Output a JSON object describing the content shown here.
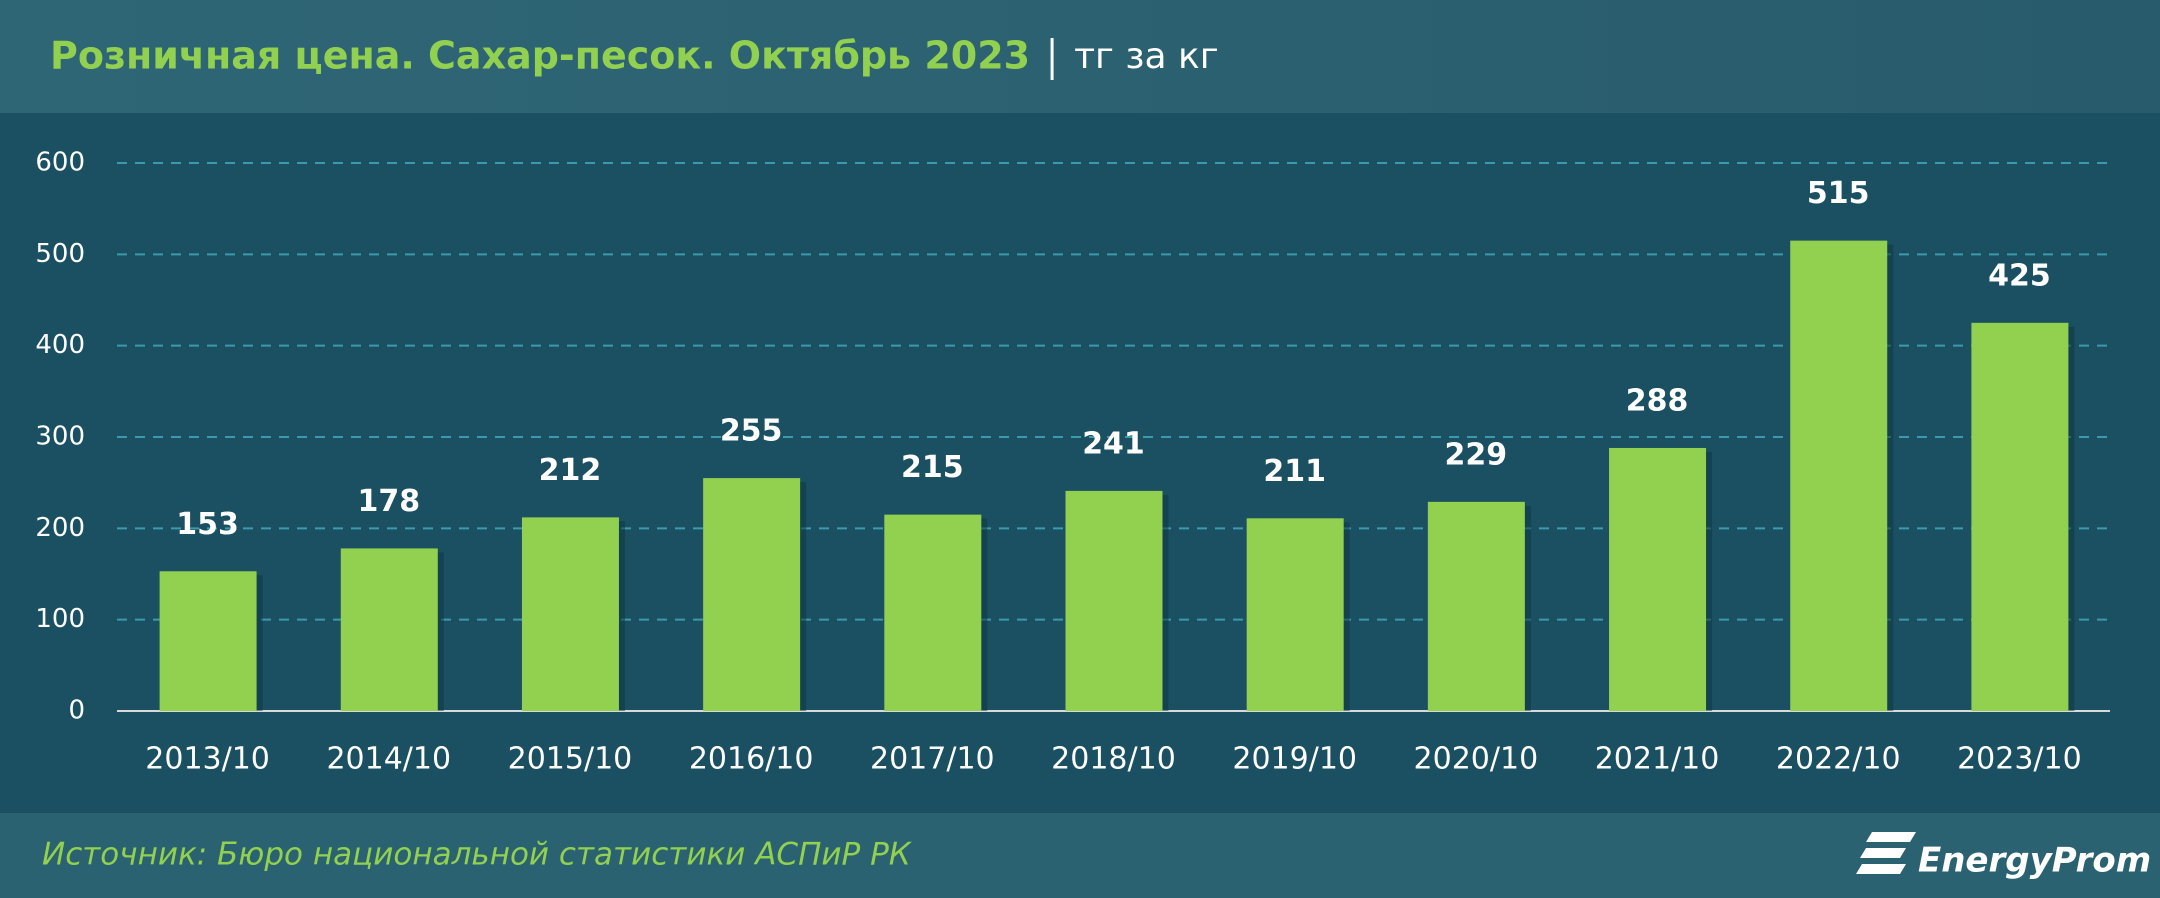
{
  "chart_data": {
    "type": "bar",
    "title": "Розничная цена. Сахар-песок. Октябрь 2023",
    "unit": "тг за кг",
    "categories": [
      "2013/10",
      "2014/10",
      "2015/10",
      "2016/10",
      "2017/10",
      "2018/10",
      "2019/10",
      "2020/10",
      "2021/10",
      "2022/10",
      "2023/10"
    ],
    "values": [
      153,
      178,
      212,
      255,
      215,
      241,
      211,
      229,
      288,
      515,
      425
    ],
    "color": "#92d050",
    "ylim": [
      0,
      600
    ],
    "yticks": [
      0,
      100,
      200,
      300,
      400,
      500,
      600
    ],
    "grid": true,
    "source": "Источник: Бюро национальной статистики АСПиР РК",
    "logo": "EnergyProm"
  }
}
